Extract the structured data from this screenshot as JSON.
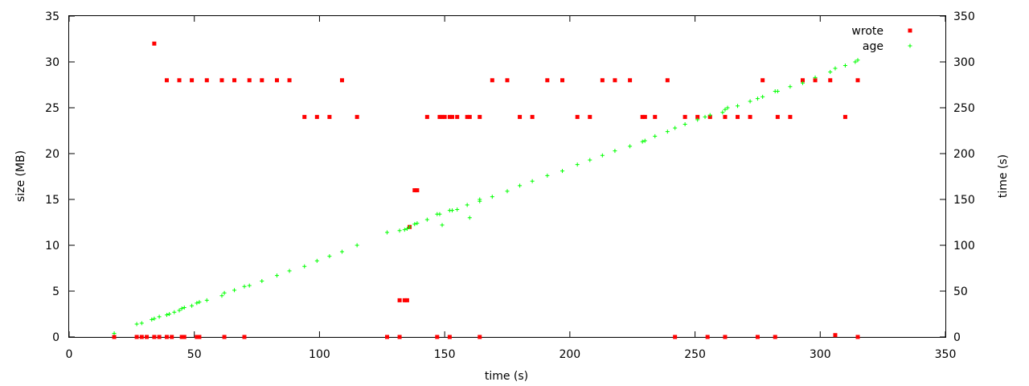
{
  "chart_data": {
    "type": "scatter",
    "xlabel": "time (s)",
    "ylabel": "size (MB)",
    "y2label": "time (s)",
    "xlim": [
      0,
      350
    ],
    "ylim": [
      0,
      35
    ],
    "y2lim": [
      0,
      350
    ],
    "xticks": [
      0,
      50,
      100,
      150,
      200,
      250,
      300,
      350
    ],
    "yticks": [
      0,
      5,
      10,
      15,
      20,
      25,
      30,
      35
    ],
    "y2ticks": [
      0,
      50,
      100,
      150,
      200,
      250,
      300,
      350
    ],
    "grid": false,
    "legend_position": "top-right",
    "series": [
      {
        "name": "wrote",
        "axis": "left",
        "marker": "square",
        "color": "#ff0000",
        "points": [
          [
            18,
            0
          ],
          [
            27,
            0
          ],
          [
            29,
            0
          ],
          [
            31,
            0
          ],
          [
            34,
            32
          ],
          [
            34,
            0
          ],
          [
            36,
            0
          ],
          [
            39,
            28
          ],
          [
            39,
            0
          ],
          [
            41,
            0
          ],
          [
            44,
            28
          ],
          [
            45,
            0
          ],
          [
            46,
            0
          ],
          [
            49,
            28
          ],
          [
            51,
            0
          ],
          [
            52,
            0
          ],
          [
            55,
            28
          ],
          [
            61,
            28
          ],
          [
            62,
            0
          ],
          [
            66,
            28
          ],
          [
            70,
            0
          ],
          [
            72,
            28
          ],
          [
            77,
            28
          ],
          [
            83,
            28
          ],
          [
            88,
            28
          ],
          [
            94,
            24
          ],
          [
            99,
            24
          ],
          [
            104,
            24
          ],
          [
            109,
            28
          ],
          [
            115,
            24
          ],
          [
            127,
            0
          ],
          [
            132,
            0
          ],
          [
            132,
            4
          ],
          [
            134,
            4
          ],
          [
            135,
            4
          ],
          [
            136,
            12
          ],
          [
            138,
            16
          ],
          [
            139,
            16
          ],
          [
            143,
            24
          ],
          [
            147,
            0
          ],
          [
            148,
            24
          ],
          [
            149,
            24
          ],
          [
            150,
            24
          ],
          [
            152,
            0
          ],
          [
            152,
            24
          ],
          [
            153,
            24
          ],
          [
            155,
            24
          ],
          [
            159,
            24
          ],
          [
            160,
            24
          ],
          [
            164,
            24
          ],
          [
            164,
            0
          ],
          [
            169,
            28
          ],
          [
            175,
            28
          ],
          [
            180,
            24
          ],
          [
            185,
            24
          ],
          [
            191,
            28
          ],
          [
            197,
            28
          ],
          [
            203,
            24
          ],
          [
            208,
            24
          ],
          [
            213,
            28
          ],
          [
            218,
            28
          ],
          [
            224,
            28
          ],
          [
            229,
            24
          ],
          [
            230,
            24
          ],
          [
            234,
            24
          ],
          [
            239,
            28
          ],
          [
            242,
            0
          ],
          [
            246,
            24
          ],
          [
            251,
            24
          ],
          [
            255,
            0
          ],
          [
            256,
            24
          ],
          [
            262,
            0
          ],
          [
            262,
            24
          ],
          [
            267,
            24
          ],
          [
            272,
            24
          ],
          [
            275,
            0
          ],
          [
            277,
            28
          ],
          [
            282,
            0
          ],
          [
            283,
            24
          ],
          [
            288,
            24
          ],
          [
            293,
            28
          ],
          [
            298,
            28
          ],
          [
            304,
            28
          ],
          [
            306,
            0.2
          ],
          [
            310,
            24
          ],
          [
            315,
            0
          ],
          [
            315,
            28
          ]
        ]
      },
      {
        "name": "age",
        "axis": "right",
        "marker": "plus",
        "color": "#00ff00",
        "points": [
          [
            18,
            4
          ],
          [
            27,
            14
          ],
          [
            29,
            15
          ],
          [
            33,
            19
          ],
          [
            34,
            20
          ],
          [
            36,
            22
          ],
          [
            39,
            24
          ],
          [
            40,
            25
          ],
          [
            42,
            27
          ],
          [
            44,
            29
          ],
          [
            45,
            31
          ],
          [
            46,
            32
          ],
          [
            49,
            34
          ],
          [
            51,
            37
          ],
          [
            52,
            38
          ],
          [
            55,
            40
          ],
          [
            61,
            45
          ],
          [
            62,
            48
          ],
          [
            66,
            51
          ],
          [
            70,
            55
          ],
          [
            72,
            56
          ],
          [
            77,
            61
          ],
          [
            83,
            67
          ],
          [
            88,
            72
          ],
          [
            94,
            77
          ],
          [
            99,
            83
          ],
          [
            104,
            88
          ],
          [
            109,
            93
          ],
          [
            115,
            100
          ],
          [
            127,
            114
          ],
          [
            132,
            116
          ],
          [
            134,
            117
          ],
          [
            135,
            118
          ],
          [
            136,
            120
          ],
          [
            138,
            123
          ],
          [
            139,
            124
          ],
          [
            143,
            128
          ],
          [
            147,
            134
          ],
          [
            148,
            134
          ],
          [
            149,
            122
          ],
          [
            152,
            138
          ],
          [
            153,
            138
          ],
          [
            155,
            139
          ],
          [
            159,
            144
          ],
          [
            160,
            130
          ],
          [
            164,
            148
          ],
          [
            164,
            150
          ],
          [
            169,
            153
          ],
          [
            175,
            159
          ],
          [
            180,
            165
          ],
          [
            185,
            170
          ],
          [
            191,
            176
          ],
          [
            197,
            181
          ],
          [
            203,
            188
          ],
          [
            208,
            193
          ],
          [
            213,
            198
          ],
          [
            218,
            203
          ],
          [
            224,
            208
          ],
          [
            229,
            213
          ],
          [
            230,
            214
          ],
          [
            234,
            219
          ],
          [
            239,
            224
          ],
          [
            242,
            228
          ],
          [
            246,
            232
          ],
          [
            251,
            237
          ],
          [
            254,
            240
          ],
          [
            256,
            242
          ],
          [
            261,
            245
          ],
          [
            262,
            248
          ],
          [
            263,
            250
          ],
          [
            267,
            252
          ],
          [
            272,
            257
          ],
          [
            275,
            260
          ],
          [
            277,
            262
          ],
          [
            282,
            268
          ],
          [
            283,
            268
          ],
          [
            288,
            273
          ],
          [
            293,
            277
          ],
          [
            298,
            283
          ],
          [
            304,
            289
          ],
          [
            306,
            293
          ],
          [
            310,
            296
          ],
          [
            314,
            300
          ],
          [
            315,
            302
          ]
        ]
      }
    ]
  }
}
